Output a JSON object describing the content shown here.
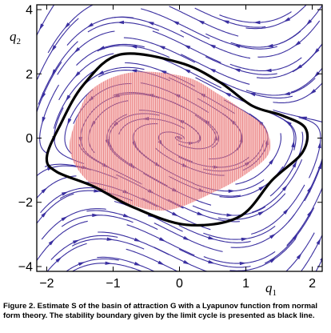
{
  "chart_data": {
    "type": "stream plot with region overlay",
    "xlim": [
      -2.15,
      2.15
    ],
    "ylim": [
      -4.15,
      4.15
    ],
    "x_ticks": [
      -2,
      -1,
      0,
      1,
      2
    ],
    "y_ticks": [
      -4,
      -2,
      0,
      2,
      4
    ],
    "x_tick_labels": [
      "−2",
      "−1",
      "0",
      "1",
      "2"
    ],
    "y_tick_labels": [
      "−4",
      "−2",
      "0",
      "2",
      "4"
    ],
    "xlabel": {
      "symbol": "q",
      "subscript": "1"
    },
    "ylabel": {
      "symbol": "q",
      "subscript": "2"
    },
    "grid": false,
    "limit_cycle": {
      "color": "#000000",
      "points": [
        [
          -0.9,
          2.6
        ],
        [
          0.0,
          2.35
        ],
        [
          0.6,
          1.75
        ],
        [
          1.1,
          1.0
        ],
        [
          1.55,
          0.7
        ],
        [
          1.9,
          0.3
        ],
        [
          1.85,
          -0.45
        ],
        [
          1.4,
          -1.3
        ],
        [
          0.9,
          -2.45
        ],
        [
          0.1,
          -2.7
        ],
        [
          -0.7,
          -2.15
        ],
        [
          -1.3,
          -1.5
        ],
        [
          -1.85,
          -1.05
        ],
        [
          -2.0,
          -0.6
        ],
        [
          -1.8,
          0.4
        ],
        [
          -1.45,
          1.65
        ]
      ]
    },
    "basin_estimate": {
      "color": "#ee8888",
      "points": [
        [
          -0.7,
          2.05
        ],
        [
          0.1,
          1.9
        ],
        [
          0.6,
          1.35
        ],
        [
          1.0,
          0.8
        ],
        [
          1.3,
          0.3
        ],
        [
          1.35,
          -0.45
        ],
        [
          1.05,
          -1.05
        ],
        [
          0.55,
          -1.65
        ],
        [
          -0.2,
          -2.25
        ],
        [
          -0.9,
          -1.95
        ],
        [
          -1.4,
          -1.3
        ],
        [
          -1.65,
          -0.4
        ],
        [
          -1.55,
          0.6
        ],
        [
          -1.3,
          1.55
        ]
      ]
    },
    "flow_color": "#3a2fa0",
    "flow_field": {
      "epsilon": 1.0
    }
  },
  "caption": "Figure 2. Estimate S of the basin of attraction G with a Lyapunov function from normal form theory. The stability boundary given by the limit cycle is presented as black line."
}
